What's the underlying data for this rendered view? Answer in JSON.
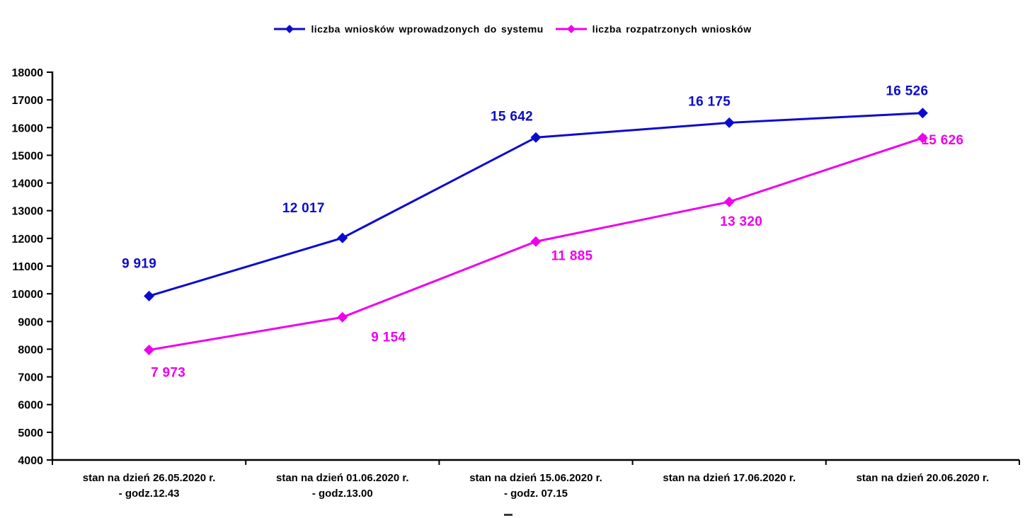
{
  "chart_data": {
    "type": "line",
    "title": "",
    "xlabel": "",
    "ylabel": "",
    "grid": false,
    "legend_position": "top-center",
    "y_axis": {
      "min": 4000,
      "max": 18000,
      "step": 1000
    },
    "categories": [
      [
        "stan na dzień 26.05.2020 r.",
        "- godz.12.43"
      ],
      [
        "stan na dzień 01.06.2020 r.",
        "- godz.13.00"
      ],
      [
        "stan na dzień 15.06.2020 r.",
        "- godz. 07.15"
      ],
      [
        "stan na dzień 17.06.2020 r.",
        ""
      ],
      [
        "stan na dzień 20.06.2020 r.",
        ""
      ]
    ],
    "series": [
      {
        "name": "liczba wniosków wprowadzonych do systemu",
        "color": "#0b0bce",
        "marker": "diamond",
        "values": [
          9919,
          12017,
          15642,
          16175,
          16526
        ],
        "labels": [
          "9 919",
          "12 017",
          "15 642",
          "16 175",
          "16 526"
        ]
      },
      {
        "name": "liczba rozpatrzonych wniosków",
        "color": "#ee00ee",
        "marker": "diamond",
        "values": [
          7973,
          9154,
          11885,
          13320,
          15626
        ],
        "labels": [
          "7 973",
          "9 154",
          "11 885",
          "13 320",
          "15 626"
        ]
      }
    ]
  }
}
